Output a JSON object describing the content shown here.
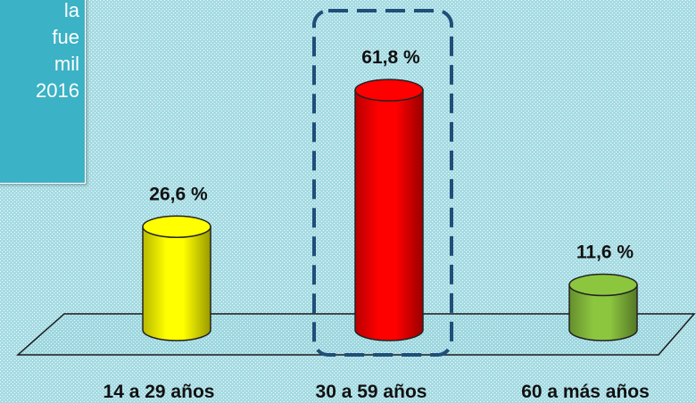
{
  "callout": {
    "lines": [
      "la",
      "fue",
      "mil",
      "2016"
    ],
    "background": "#3bb2c5"
  },
  "chart_data": {
    "type": "bar",
    "categories": [
      "14 a 29 años",
      "30 a 59 años",
      "60  a más años"
    ],
    "values": [
      26.6,
      61.8,
      11.6
    ],
    "value_labels": [
      "26,6 %",
      "61,8 %",
      "11,6 %"
    ],
    "colors": [
      "#ffff00",
      "#ff0000",
      "#8cc63f"
    ],
    "highlighted_category": "30 a 59 años",
    "title": "",
    "xlabel": "",
    "ylabel": "",
    "ylim": [
      0,
      65
    ],
    "grid": false,
    "legend": "none"
  }
}
